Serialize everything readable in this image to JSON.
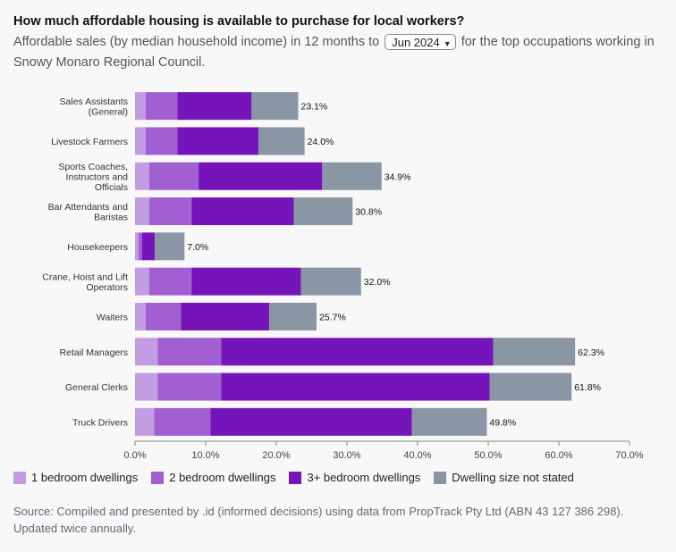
{
  "header": {
    "title": "How much affordable housing is available to purchase for local workers?",
    "subtitle_before": "Affordable sales (by median household income) in 12 months to",
    "period_selected": "Jun 2024",
    "subtitle_after": "for the top occupations working in Snowy Monaro Regional Council."
  },
  "chart_data": {
    "type": "bar",
    "orientation": "horizontal",
    "stacked": true,
    "title": "How much affordable housing is available to purchase for local workers?",
    "categories": [
      "Sales Assistants (General)",
      "Livestock Farmers",
      "Sports Coaches, Instructors and Officials",
      "Bar Attendants and Baristas",
      "Housekeepers",
      "Crane, Hoist and Lift Operators",
      "Waiters",
      "Retail Managers",
      "General Clerks",
      "Truck Drivers"
    ],
    "series": [
      {
        "name": "1 bedroom dwellings",
        "color": "#c39de1",
        "values": [
          1.5,
          1.5,
          2.0,
          2.0,
          0.5,
          2.0,
          1.5,
          3.2,
          3.2,
          2.7
        ]
      },
      {
        "name": "2 bedroom dwellings",
        "color": "#a15fd2",
        "values": [
          4.5,
          4.5,
          7.0,
          6.0,
          0.5,
          6.0,
          5.0,
          9.0,
          9.0,
          8.0
        ]
      },
      {
        "name": "3+ bedroom dwellings",
        "color": "#7414b9",
        "values": [
          10.5,
          11.5,
          17.5,
          14.5,
          1.8,
          15.5,
          12.5,
          38.5,
          38.0,
          28.5
        ]
      },
      {
        "name": "Dwelling size not stated",
        "color": "#8b96a5",
        "values": [
          6.6,
          6.5,
          8.4,
          8.3,
          4.2,
          8.5,
          6.7,
          11.6,
          11.6,
          10.6
        ]
      }
    ],
    "totals": [
      "23.1%",
      "24.0%",
      "34.9%",
      "30.8%",
      "7.0%",
      "32.0%",
      "25.7%",
      "62.3%",
      "61.8%",
      "49.8%"
    ],
    "xlim": [
      0,
      70
    ],
    "xticks": [
      0,
      10,
      20,
      30,
      40,
      50,
      60,
      70
    ],
    "xtick_labels": [
      "0.0%",
      "10.0%",
      "20.0%",
      "30.0%",
      "40.0%",
      "50.0%",
      "60.0%",
      "70.0%"
    ],
    "xlabel": "",
    "ylabel": "",
    "legend_position": "bottom-left"
  },
  "source": {
    "text": "Source: Compiled and presented by .id (informed decisions) using data from PropTrack Pty Ltd (ABN 43 127 386 298). Updated twice annually."
  }
}
